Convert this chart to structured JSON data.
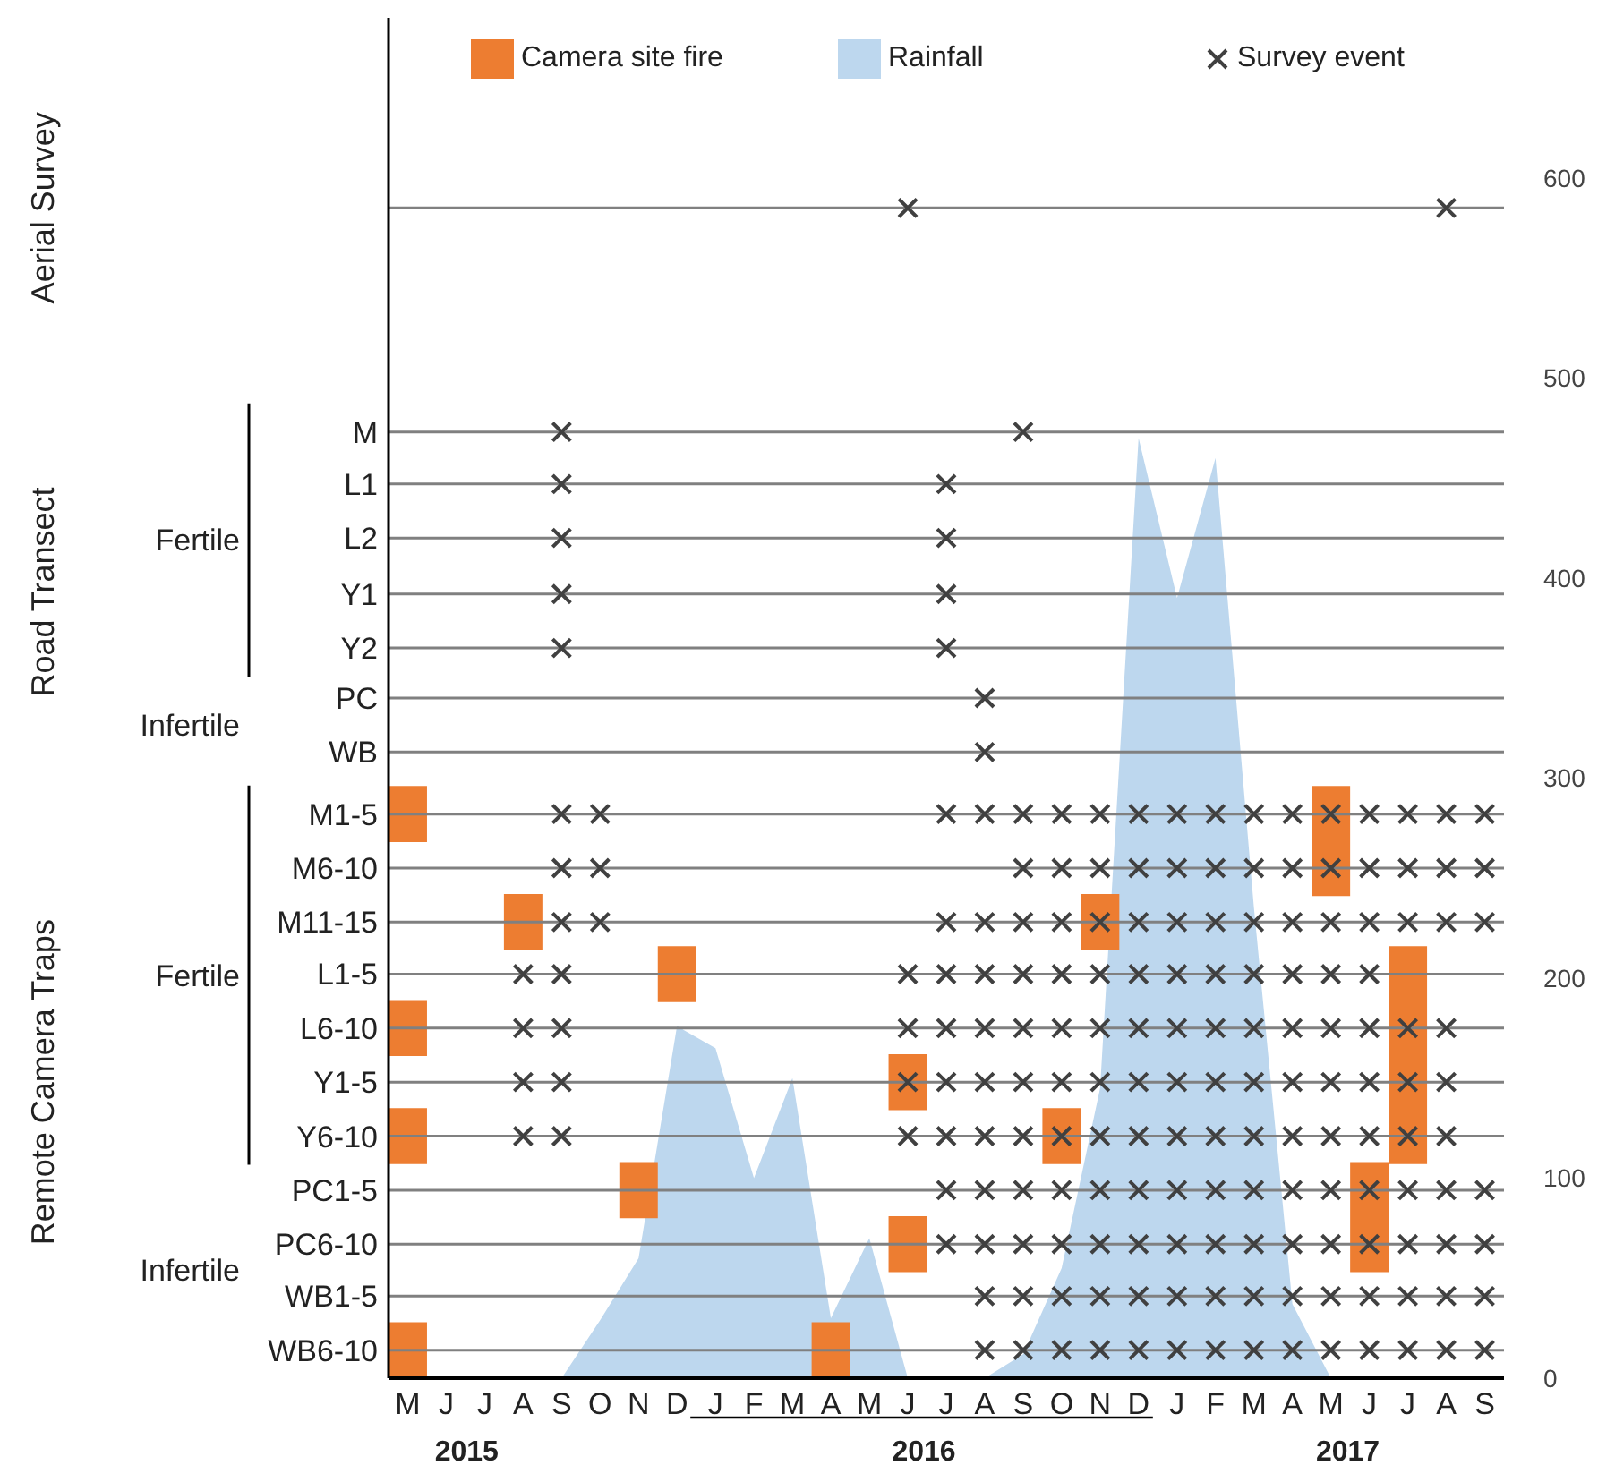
{
  "chart_data": {
    "type": "scatter",
    "categories": [
      "M",
      "J",
      "J",
      "A",
      "S",
      "O",
      "N",
      "D",
      "J",
      "F",
      "M",
      "A",
      "M",
      "J",
      "J",
      "A",
      "S",
      "O",
      "N",
      "D",
      "J",
      "F",
      "M",
      "A",
      "M",
      "J",
      "J",
      "A",
      "S"
    ],
    "y2lim": [
      0,
      680
    ],
    "y2ticks": [
      0,
      100,
      200,
      300,
      400,
      500,
      600
    ],
    "legend": "top",
    "marker": "cross",
    "ref_lines": [
      {
        "axis": "y2",
        "value": 585,
        "label": null,
        "color": "#808080"
      },
      {
        "axis": "y2",
        "value": 473,
        "label": "M",
        "color": "#808080"
      },
      {
        "axis": "y2",
        "value": 447,
        "label": "L1",
        "color": "#808080"
      },
      {
        "axis": "y2",
        "value": 420,
        "label": "L2",
        "color": "#808080"
      },
      {
        "axis": "y2",
        "value": 392,
        "label": "Y1",
        "color": "#808080"
      },
      {
        "axis": "y2",
        "value": 365,
        "label": "Y2",
        "color": "#808080"
      },
      {
        "axis": "y2",
        "value": 340,
        "label": "PC",
        "color": "#808080"
      },
      {
        "axis": "y2",
        "value": 313,
        "label": "WB",
        "color": "#808080"
      },
      {
        "axis": "y2",
        "value": 282,
        "label": "M1-5",
        "color": "#808080"
      },
      {
        "axis": "y2",
        "value": 255,
        "label": "M6-10",
        "color": "#808080"
      },
      {
        "axis": "y2",
        "value": 228,
        "label": "M11-15",
        "color": "#808080"
      },
      {
        "axis": "y2",
        "value": 202,
        "label": "L1-5",
        "color": "#808080"
      },
      {
        "axis": "y2",
        "value": 175,
        "label": "L6-10",
        "color": "#808080"
      },
      {
        "axis": "y2",
        "value": 148,
        "label": "Y1-5",
        "color": "#808080"
      },
      {
        "axis": "y2",
        "value": 121,
        "label": "Y6-10",
        "color": "#808080"
      },
      {
        "axis": "y2",
        "value": 94,
        "label": "PC1-5",
        "color": "#808080"
      },
      {
        "axis": "y2",
        "value": 67,
        "label": "PC6-10",
        "color": "#808080"
      },
      {
        "axis": "y2",
        "value": 41,
        "label": "WB1-5",
        "color": "#808080"
      },
      {
        "axis": "y2",
        "value": 14,
        "label": "WB6-10",
        "color": "#808080"
      }
    ],
    "annotations": [
      "2015",
      "2016",
      "2017",
      "Aerial Survey",
      "Road Transect",
      "Remote Camera Traps",
      "Fertile",
      "Infertile",
      "Fertile",
      "Infertile"
    ],
    "series": [
      {
        "name": "Camera site fire",
        "type": "bar",
        "axis": "y2",
        "color": "#ed7d31",
        "base": [
          268,
          null,
          null,
          214,
          null,
          null,
          80,
          188,
          null,
          null,
          null,
          0,
          null,
          134,
          null,
          null,
          null,
          107,
          214,
          null,
          null,
          null,
          null,
          null,
          241,
          53,
          107,
          null,
          null
        ],
        "values": [
          28,
          null,
          null,
          28,
          null,
          null,
          28,
          28,
          null,
          null,
          null,
          28,
          null,
          28,
          null,
          null,
          null,
          28,
          28,
          null,
          null,
          null,
          null,
          null,
          55,
          55,
          109,
          null,
          null
        ]
      },
      {
        "type": "bar",
        "axis": "y2",
        "color": "#ed7d31",
        "base": [
          161,
          null,
          null,
          null,
          null,
          null,
          null,
          null,
          null,
          null,
          null,
          null,
          null,
          53,
          null,
          null,
          null,
          null,
          null,
          null,
          null,
          null,
          null,
          null,
          null,
          null,
          null,
          null,
          null
        ],
        "values": [
          28,
          null,
          null,
          null,
          null,
          null,
          null,
          null,
          null,
          null,
          null,
          null,
          null,
          28,
          null,
          null,
          null,
          null,
          null,
          null,
          null,
          null,
          null,
          null,
          null,
          null,
          null,
          null,
          null
        ]
      },
      {
        "type": "bar",
        "axis": "y2",
        "color": "#ed7d31",
        "base": [
          107,
          null,
          null,
          null,
          null,
          null,
          null,
          null,
          null,
          null,
          null,
          null,
          null,
          null,
          null,
          null,
          null,
          null,
          null,
          null,
          null,
          null,
          null,
          null,
          null,
          null,
          null,
          null,
          null
        ],
        "values": [
          28,
          null,
          null,
          null,
          null,
          null,
          null,
          null,
          null,
          null,
          null,
          null,
          null,
          null,
          null,
          null,
          null,
          null,
          null,
          null,
          null,
          null,
          null,
          null,
          null,
          null,
          null,
          null,
          null
        ]
      },
      {
        "type": "bar",
        "axis": "y2",
        "color": "#ed7d31",
        "base": [
          0,
          null,
          null,
          null,
          null,
          null,
          null,
          null,
          null,
          null,
          null,
          null,
          null,
          null,
          null,
          null,
          null,
          null,
          null,
          null,
          null,
          null,
          null,
          null,
          null,
          null,
          null,
          null,
          null
        ],
        "values": [
          28,
          null,
          null,
          null,
          null,
          null,
          null,
          null,
          null,
          null,
          null,
          null,
          null,
          null,
          null,
          null,
          null,
          null,
          null,
          null,
          null,
          null,
          null,
          null,
          null,
          null,
          null,
          null,
          null
        ]
      },
      {
        "name": "Rainfall",
        "type": "area",
        "axis": "y2",
        "marker": "none",
        "color": "#bdd7ee",
        "values": [
          0,
          0,
          0,
          0,
          0,
          29,
          60,
          176,
          165,
          100,
          150,
          30,
          70,
          0,
          0,
          0,
          12,
          55,
          145,
          470,
          390,
          460,
          235,
          37,
          0,
          0,
          0,
          0,
          0
        ]
      },
      {
        "name": "Survey event",
        "axis": "y2",
        "color": "#404040",
        "values": [
          null,
          null,
          null,
          null,
          null,
          null,
          null,
          null,
          null,
          null,
          null,
          null,
          null,
          585,
          null,
          null,
          null,
          null,
          null,
          null,
          null,
          null,
          null,
          null,
          null,
          null,
          null,
          585,
          null
        ]
      },
      {
        "axis": "y2",
        "color": "#404040",
        "values": [
          null,
          null,
          null,
          null,
          473,
          null,
          null,
          null,
          null,
          null,
          null,
          null,
          null,
          null,
          null,
          null,
          473,
          null,
          null,
          null,
          null,
          null,
          null,
          null,
          null,
          null,
          null,
          null,
          null
        ]
      },
      {
        "axis": "y2",
        "color": "#404040",
        "values": [
          null,
          null,
          null,
          null,
          447,
          null,
          null,
          null,
          null,
          null,
          null,
          null,
          null,
          null,
          447,
          null,
          null,
          null,
          null,
          null,
          null,
          null,
          null,
          null,
          null,
          null,
          null,
          null,
          null
        ]
      },
      {
        "axis": "y2",
        "color": "#404040",
        "values": [
          null,
          null,
          null,
          null,
          420,
          null,
          null,
          null,
          null,
          null,
          null,
          null,
          null,
          null,
          420,
          null,
          null,
          null,
          null,
          null,
          null,
          null,
          null,
          null,
          null,
          null,
          null,
          null,
          null
        ]
      },
      {
        "axis": "y2",
        "color": "#404040",
        "values": [
          null,
          null,
          null,
          null,
          392,
          null,
          null,
          null,
          null,
          null,
          null,
          null,
          null,
          null,
          392,
          null,
          null,
          null,
          null,
          null,
          null,
          null,
          null,
          null,
          null,
          null,
          null,
          null,
          null
        ]
      },
      {
        "axis": "y2",
        "color": "#404040",
        "values": [
          null,
          null,
          null,
          null,
          365,
          null,
          null,
          null,
          null,
          null,
          null,
          null,
          null,
          null,
          365,
          null,
          null,
          null,
          null,
          null,
          null,
          null,
          null,
          null,
          null,
          null,
          null,
          null,
          null
        ]
      },
      {
        "axis": "y2",
        "color": "#404040",
        "values": [
          null,
          null,
          null,
          null,
          null,
          null,
          null,
          null,
          null,
          null,
          null,
          null,
          null,
          null,
          null,
          340,
          null,
          null,
          null,
          null,
          null,
          null,
          null,
          null,
          null,
          null,
          null,
          null,
          null
        ]
      },
      {
        "axis": "y2",
        "color": "#404040",
        "values": [
          null,
          null,
          null,
          null,
          null,
          null,
          null,
          null,
          null,
          null,
          null,
          null,
          null,
          null,
          null,
          313,
          null,
          null,
          null,
          null,
          null,
          null,
          null,
          null,
          null,
          null,
          null,
          null,
          null
        ]
      },
      {
        "axis": "y2",
        "color": "#404040",
        "values": [
          null,
          null,
          null,
          null,
          282,
          282,
          null,
          null,
          null,
          null,
          null,
          null,
          null,
          null,
          282,
          282,
          282,
          282,
          282,
          282,
          282,
          282,
          282,
          282,
          282,
          282,
          282,
          282,
          282
        ]
      },
      {
        "axis": "y2",
        "color": "#404040",
        "values": [
          null,
          null,
          null,
          null,
          255,
          255,
          null,
          null,
          null,
          null,
          null,
          null,
          null,
          null,
          null,
          null,
          255,
          255,
          255,
          255,
          255,
          255,
          255,
          255,
          255,
          255,
          255,
          255,
          255
        ]
      },
      {
        "axis": "y2",
        "color": "#404040",
        "values": [
          null,
          null,
          null,
          null,
          228,
          228,
          null,
          null,
          null,
          null,
          null,
          null,
          null,
          null,
          228,
          228,
          228,
          228,
          228,
          228,
          228,
          228,
          228,
          228,
          228,
          228,
          228,
          228,
          228
        ]
      },
      {
        "axis": "y2",
        "color": "#404040",
        "values": [
          null,
          null,
          null,
          202,
          202,
          null,
          null,
          null,
          null,
          null,
          null,
          null,
          null,
          202,
          202,
          202,
          202,
          202,
          202,
          202,
          202,
          202,
          202,
          202,
          202,
          202,
          null,
          null,
          null
        ]
      },
      {
        "axis": "y2",
        "color": "#404040",
        "values": [
          null,
          null,
          null,
          175,
          175,
          null,
          null,
          null,
          null,
          null,
          null,
          null,
          null,
          175,
          175,
          175,
          175,
          175,
          175,
          175,
          175,
          175,
          175,
          175,
          175,
          175,
          175,
          175,
          null
        ]
      },
      {
        "axis": "y2",
        "color": "#404040",
        "values": [
          null,
          null,
          null,
          148,
          148,
          null,
          null,
          null,
          null,
          null,
          null,
          null,
          null,
          148,
          148,
          148,
          148,
          148,
          148,
          148,
          148,
          148,
          148,
          148,
          148,
          148,
          148,
          148,
          null
        ]
      },
      {
        "axis": "y2",
        "color": "#404040",
        "values": [
          null,
          null,
          null,
          121,
          121,
          null,
          null,
          null,
          null,
          null,
          null,
          null,
          null,
          121,
          121,
          121,
          121,
          121,
          121,
          121,
          121,
          121,
          121,
          121,
          121,
          121,
          121,
          121,
          null
        ]
      },
      {
        "axis": "y2",
        "color": "#404040",
        "values": [
          null,
          null,
          null,
          null,
          null,
          null,
          null,
          null,
          null,
          null,
          null,
          null,
          null,
          null,
          94,
          94,
          94,
          94,
          94,
          94,
          94,
          94,
          94,
          94,
          94,
          94,
          94,
          94,
          94
        ]
      },
      {
        "axis": "y2",
        "color": "#404040",
        "values": [
          null,
          null,
          null,
          null,
          null,
          null,
          null,
          null,
          null,
          null,
          null,
          null,
          null,
          null,
          67,
          67,
          67,
          67,
          67,
          67,
          67,
          67,
          67,
          67,
          67,
          67,
          67,
          67,
          67
        ]
      },
      {
        "axis": "y2",
        "color": "#404040",
        "values": [
          null,
          null,
          null,
          null,
          null,
          null,
          null,
          null,
          null,
          null,
          null,
          null,
          null,
          null,
          null,
          41,
          41,
          41,
          41,
          41,
          41,
          41,
          41,
          41,
          41,
          41,
          41,
          41,
          41
        ]
      },
      {
        "axis": "y2",
        "color": "#404040",
        "values": [
          null,
          null,
          null,
          null,
          null,
          null,
          null,
          null,
          null,
          null,
          null,
          null,
          null,
          null,
          null,
          14,
          14,
          14,
          14,
          14,
          14,
          14,
          14,
          14,
          14,
          14,
          14,
          14,
          14
        ]
      }
    ]
  }
}
